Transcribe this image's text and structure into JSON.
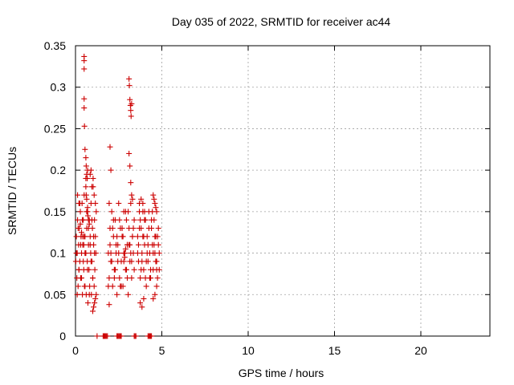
{
  "chart_data": {
    "type": "scatter",
    "title": "Day 035 of 2022, SRMTID for receiver ac44",
    "xlabel": "GPS time / hours",
    "ylabel": "SRMTID / TECUs",
    "xlim": [
      0,
      24
    ],
    "ylim": [
      0,
      0.35
    ],
    "xticks": [
      0,
      5,
      10,
      15,
      20
    ],
    "yticks": [
      0,
      0.05,
      0.1,
      0.15,
      0.2,
      0.25,
      0.3,
      0.35
    ],
    "ytick_labels": [
      "0",
      "0.05",
      "0.1",
      "0.15",
      "0.2",
      "0.25",
      "0.3",
      "0.35"
    ],
    "grid": true,
    "marker": "+",
    "color": "#cc0000",
    "series": [
      {
        "x": [
          0.02,
          0.05,
          0.08,
          0.1,
          0.12,
          0.15,
          0.18,
          0.2,
          0.22,
          0.25,
          0.28,
          0.3,
          0.32,
          0.35,
          0.38,
          0.4,
          0.42,
          0.45,
          0.48,
          0.5,
          0.52,
          0.55,
          0.58,
          0.6,
          0.62,
          0.65,
          0.68,
          0.7,
          0.72,
          0.75,
          0.78,
          0.8,
          0.82,
          0.85,
          0.88,
          0.9,
          0.92,
          0.95,
          0.98,
          1.0,
          1.02,
          1.05,
          1.08,
          1.1,
          1.12,
          1.15,
          1.18,
          1.2,
          0.05,
          0.1,
          0.15,
          0.2,
          0.25,
          0.3,
          0.35,
          0.4,
          0.45,
          0.5,
          0.55,
          0.6,
          0.65,
          0.7,
          0.75,
          0.8,
          0.85,
          0.9,
          0.95,
          1.0,
          1.05,
          1.1,
          1.15,
          0.5,
          0.5,
          0.5,
          0.5,
          0.5,
          0.52,
          0.55,
          0.6,
          0.62,
          0.65,
          0.68,
          0.7,
          0.6,
          0.62,
          0.65,
          0.7,
          0.72,
          0.75,
          0.8,
          1.0,
          1.05,
          1.1,
          1.15,
          1.2,
          0.12,
          0.2,
          0.28,
          0.35,
          0.42,
          0.48,
          0.55,
          0.85,
          0.9,
          0.95,
          1.02,
          1.08
        ],
        "y": [
          0.09,
          0.12,
          0.07,
          0.1,
          0.14,
          0.06,
          0.11,
          0.08,
          0.13,
          0.09,
          0.15,
          0.07,
          0.12,
          0.1,
          0.16,
          0.05,
          0.11,
          0.14,
          0.08,
          0.17,
          0.06,
          0.12,
          0.1,
          0.19,
          0.05,
          0.13,
          0.09,
          0.15,
          0.04,
          0.11,
          0.08,
          0.14,
          0.06,
          0.12,
          0.1,
          0.16,
          0.05,
          0.09,
          0.13,
          0.07,
          0.18,
          0.11,
          0.06,
          0.14,
          0.08,
          0.12,
          0.1,
          0.15,
          0.1,
          0.05,
          0.13,
          0.08,
          0.16,
          0.11,
          0.07,
          0.14,
          0.09,
          0.12,
          0.06,
          0.1,
          0.15,
          0.08,
          0.13,
          0.05,
          0.11,
          0.09,
          0.14,
          0.07,
          0.12,
          0.1,
          0.16,
          0.337,
          0.332,
          0.322,
          0.286,
          0.275,
          0.253,
          0.225,
          0.215,
          0.205,
          0.195,
          0.19,
          0.2,
          0.18,
          0.17,
          0.165,
          0.155,
          0.145,
          0.14,
          0.135,
          0.03,
          0.035,
          0.04,
          0.045,
          0.05,
          0.17,
          0.16,
          0.135,
          0.125,
          0.12,
          0.11,
          0.1,
          0.195,
          0.2,
          0.18,
          0.19,
          0.17
        ]
      },
      {
        "x": [
          1.9,
          1.95,
          2.0,
          2.05,
          2.1,
          2.15,
          2.2,
          2.25,
          2.3,
          2.35,
          2.4,
          2.45,
          2.5,
          2.55,
          2.6,
          2.65,
          2.7,
          2.75,
          2.8,
          2.85,
          2.9,
          2.95,
          3.0,
          3.05,
          3.1,
          3.15,
          3.2,
          3.25,
          3.3,
          3.35,
          3.4,
          1.9,
          2.0,
          2.1,
          2.2,
          2.3,
          2.4,
          2.5,
          2.6,
          2.7,
          2.8,
          2.9,
          3.0,
          3.1,
          3.2,
          3.3,
          3.4,
          1.95,
          2.05,
          2.15,
          2.25,
          2.35,
          2.45,
          2.55,
          2.65,
          2.75,
          2.85,
          2.95,
          3.05,
          3.15,
          3.25,
          3.35,
          3.1,
          3.12,
          3.15,
          3.18,
          3.2,
          3.22,
          3.25,
          3.1,
          3.15,
          3.2,
          3.25,
          3.3,
          2.0,
          2.05,
          1.95,
          2.8,
          2.85,
          2.9,
          3.0
        ],
        "y": [
          0.1,
          0.07,
          0.13,
          0.09,
          0.15,
          0.06,
          0.12,
          0.08,
          0.14,
          0.1,
          0.05,
          0.11,
          0.16,
          0.07,
          0.13,
          0.09,
          0.12,
          0.06,
          0.15,
          0.1,
          0.08,
          0.14,
          0.11,
          0.05,
          0.13,
          0.09,
          0.16,
          0.07,
          0.12,
          0.1,
          0.14,
          0.06,
          0.11,
          0.09,
          0.14,
          0.08,
          0.12,
          0.1,
          0.06,
          0.13,
          0.09,
          0.15,
          0.07,
          0.11,
          0.1,
          0.12,
          0.08,
          0.16,
          0.1,
          0.13,
          0.07,
          0.11,
          0.09,
          0.14,
          0.06,
          0.12,
          0.1,
          0.08,
          0.15,
          0.11,
          0.09,
          0.13,
          0.31,
          0.302,
          0.285,
          0.278,
          0.272,
          0.265,
          0.28,
          0.22,
          0.205,
          0.185,
          0.17,
          0.165,
          0.228,
          0.2,
          0.038,
          0.1,
          0.095,
          0.105,
          0.11
        ]
      },
      {
        "x": [
          3.6,
          3.65,
          3.7,
          3.75,
          3.8,
          3.85,
          3.9,
          3.95,
          4.0,
          4.05,
          4.1,
          4.15,
          4.2,
          4.25,
          4.3,
          4.35,
          4.4,
          4.45,
          4.5,
          4.55,
          4.6,
          4.65,
          4.7,
          4.75,
          4.8,
          4.85,
          3.6,
          3.7,
          3.8,
          3.9,
          4.0,
          4.1,
          4.2,
          4.3,
          4.4,
          4.5,
          4.6,
          4.7,
          4.8,
          3.65,
          3.75,
          3.85,
          3.95,
          4.05,
          4.15,
          4.25,
          4.35,
          4.45,
          4.55,
          4.65,
          4.75,
          4.85,
          3.7,
          3.8,
          3.9,
          4.0,
          4.5,
          4.55,
          4.6,
          4.65,
          4.7,
          3.75,
          3.85,
          3.95,
          4.5,
          4.6,
          4.7
        ],
        "y": [
          0.12,
          0.09,
          0.15,
          0.07,
          0.13,
          0.1,
          0.16,
          0.08,
          0.11,
          0.14,
          0.06,
          0.12,
          0.09,
          0.15,
          0.1,
          0.07,
          0.13,
          0.11,
          0.08,
          0.14,
          0.1,
          0.12,
          0.09,
          0.07,
          0.11,
          0.08,
          0.1,
          0.13,
          0.08,
          0.12,
          0.15,
          0.09,
          0.11,
          0.07,
          0.14,
          0.1,
          0.12,
          0.08,
          0.13,
          0.11,
          0.14,
          0.09,
          0.12,
          0.07,
          0.1,
          0.13,
          0.08,
          0.15,
          0.11,
          0.09,
          0.12,
          0.1,
          0.16,
          0.165,
          0.15,
          0.14,
          0.17,
          0.165,
          0.16,
          0.155,
          0.15,
          0.04,
          0.035,
          0.045,
          0.045,
          0.05,
          0.06
        ]
      },
      {
        "x": [
          1.25,
          1.6,
          1.65,
          1.7,
          1.75,
          1.8,
          1.85,
          2.4,
          2.45,
          2.5,
          2.55,
          2.6,
          2.65,
          3.4,
          3.45,
          3.5,
          4.2,
          4.25,
          4.3,
          4.35,
          4.4
        ],
        "y": [
          0,
          0,
          0,
          0,
          0,
          0,
          0,
          0,
          0,
          0,
          0,
          0,
          0,
          0,
          0,
          0,
          0,
          0,
          0,
          0,
          0
        ]
      }
    ]
  }
}
